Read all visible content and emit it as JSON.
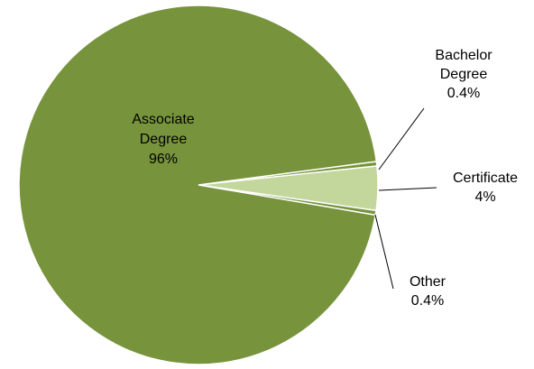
{
  "chart_data": {
    "type": "pie",
    "colors": {
      "Associate Degree": "#77933c",
      "Bachelor Degree": "#77933c",
      "Certificate": "#c3d69b",
      "Other": "#77933c"
    },
    "slices": [
      {
        "category": "Bachelor Degree",
        "value": 0.4,
        "label_lines": [
          "Bachelor",
          "Degree",
          "0.4%"
        ]
      },
      {
        "category": "Certificate",
        "value": 4,
        "label_lines": [
          "Certificate",
          "4%"
        ]
      },
      {
        "category": "Other",
        "value": 0.4,
        "label_lines": [
          "Other",
          "0.4%"
        ]
      },
      {
        "category": "Associate Degree",
        "value": 96,
        "label_lines": [
          "Associate",
          "Degree",
          "96%"
        ]
      }
    ],
    "legend": "none"
  }
}
